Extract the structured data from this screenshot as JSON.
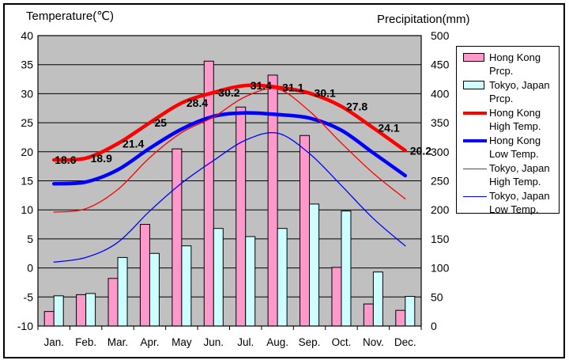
{
  "chart_data": {
    "type": "bar+line",
    "title_temp_axis": "Temperature(℃)",
    "title_precip_axis": "Precipitation(mm)",
    "categories": [
      "Jan.",
      "Feb.",
      "Mar.",
      "Apr.",
      "May",
      "Jun.",
      "Jul.",
      "Aug.",
      "Sep.",
      "Oct.",
      "Nov.",
      "Dec."
    ],
    "temp_axis": {
      "min": -10,
      "max": 40,
      "step": 5,
      "ticks": [
        "40",
        "35",
        "30",
        "25",
        "20",
        "15",
        "10",
        "5",
        "0",
        "-5",
        "-10"
      ]
    },
    "precip_axis": {
      "min": 0,
      "max": 500,
      "step": 50,
      "ticks": [
        "500",
        "450",
        "400",
        "350",
        "300",
        "250",
        "200",
        "150",
        "100",
        "50",
        "0"
      ]
    },
    "plot_bg_color": "#C0C0C0",
    "grid_color": "#000000",
    "legend_position": "right",
    "series": [
      {
        "name": "Hong Kong Prcp.",
        "type": "bar",
        "axis": "precip",
        "color": "#FF99CC",
        "values": [
          25,
          54,
          82,
          175,
          305,
          456,
          377,
          432,
          328,
          101,
          38,
          27
        ]
      },
      {
        "name": "Tokyo, Japan Prcp.",
        "type": "bar",
        "axis": "precip",
        "color": "#CCFFFF",
        "values": [
          52,
          56,
          118,
          125,
          138,
          168,
          154,
          168,
          210,
          198,
          93,
          51
        ]
      },
      {
        "name": "Hong Kong High Temp.",
        "type": "line",
        "axis": "temp",
        "color": "#FF0000",
        "thickness": 4.5,
        "values": [
          18.6,
          18.9,
          21.4,
          25,
          28.4,
          30.2,
          31.4,
          31.1,
          30.1,
          27.8,
          24.1,
          20.2
        ],
        "point_labels": [
          "18.6",
          "18.9",
          "21.4",
          "25",
          "28.4",
          "30.2",
          "31.4",
          "31.1",
          "30.1",
          "27.8",
          "24.1",
          "20.2"
        ]
      },
      {
        "name": "Hong Kong Low Temp.",
        "type": "line",
        "axis": "temp",
        "color": "#0000FF",
        "thickness": 4.5,
        "values": [
          14.5,
          14.8,
          16.9,
          20.6,
          23.9,
          26.1,
          26.7,
          26.4,
          25.8,
          23.7,
          19.8,
          15.9
        ]
      },
      {
        "name": "Tokyo, Japan High Temp.",
        "type": "line",
        "axis": "temp",
        "color": "#FF0000",
        "thickness": 1.3,
        "values": [
          9.6,
          10.2,
          13.5,
          19.0,
          23.3,
          26.0,
          29.5,
          30.8,
          27.0,
          21.5,
          16.3,
          11.9
        ]
      },
      {
        "name": "Tokyo, Japan Low Temp.",
        "type": "line",
        "axis": "temp",
        "color": "#0000FF",
        "thickness": 1.3,
        "values": [
          1.0,
          1.8,
          4.4,
          9.8,
          14.6,
          18.5,
          22.0,
          23.2,
          19.7,
          14.2,
          8.5,
          3.8
        ]
      }
    ]
  }
}
